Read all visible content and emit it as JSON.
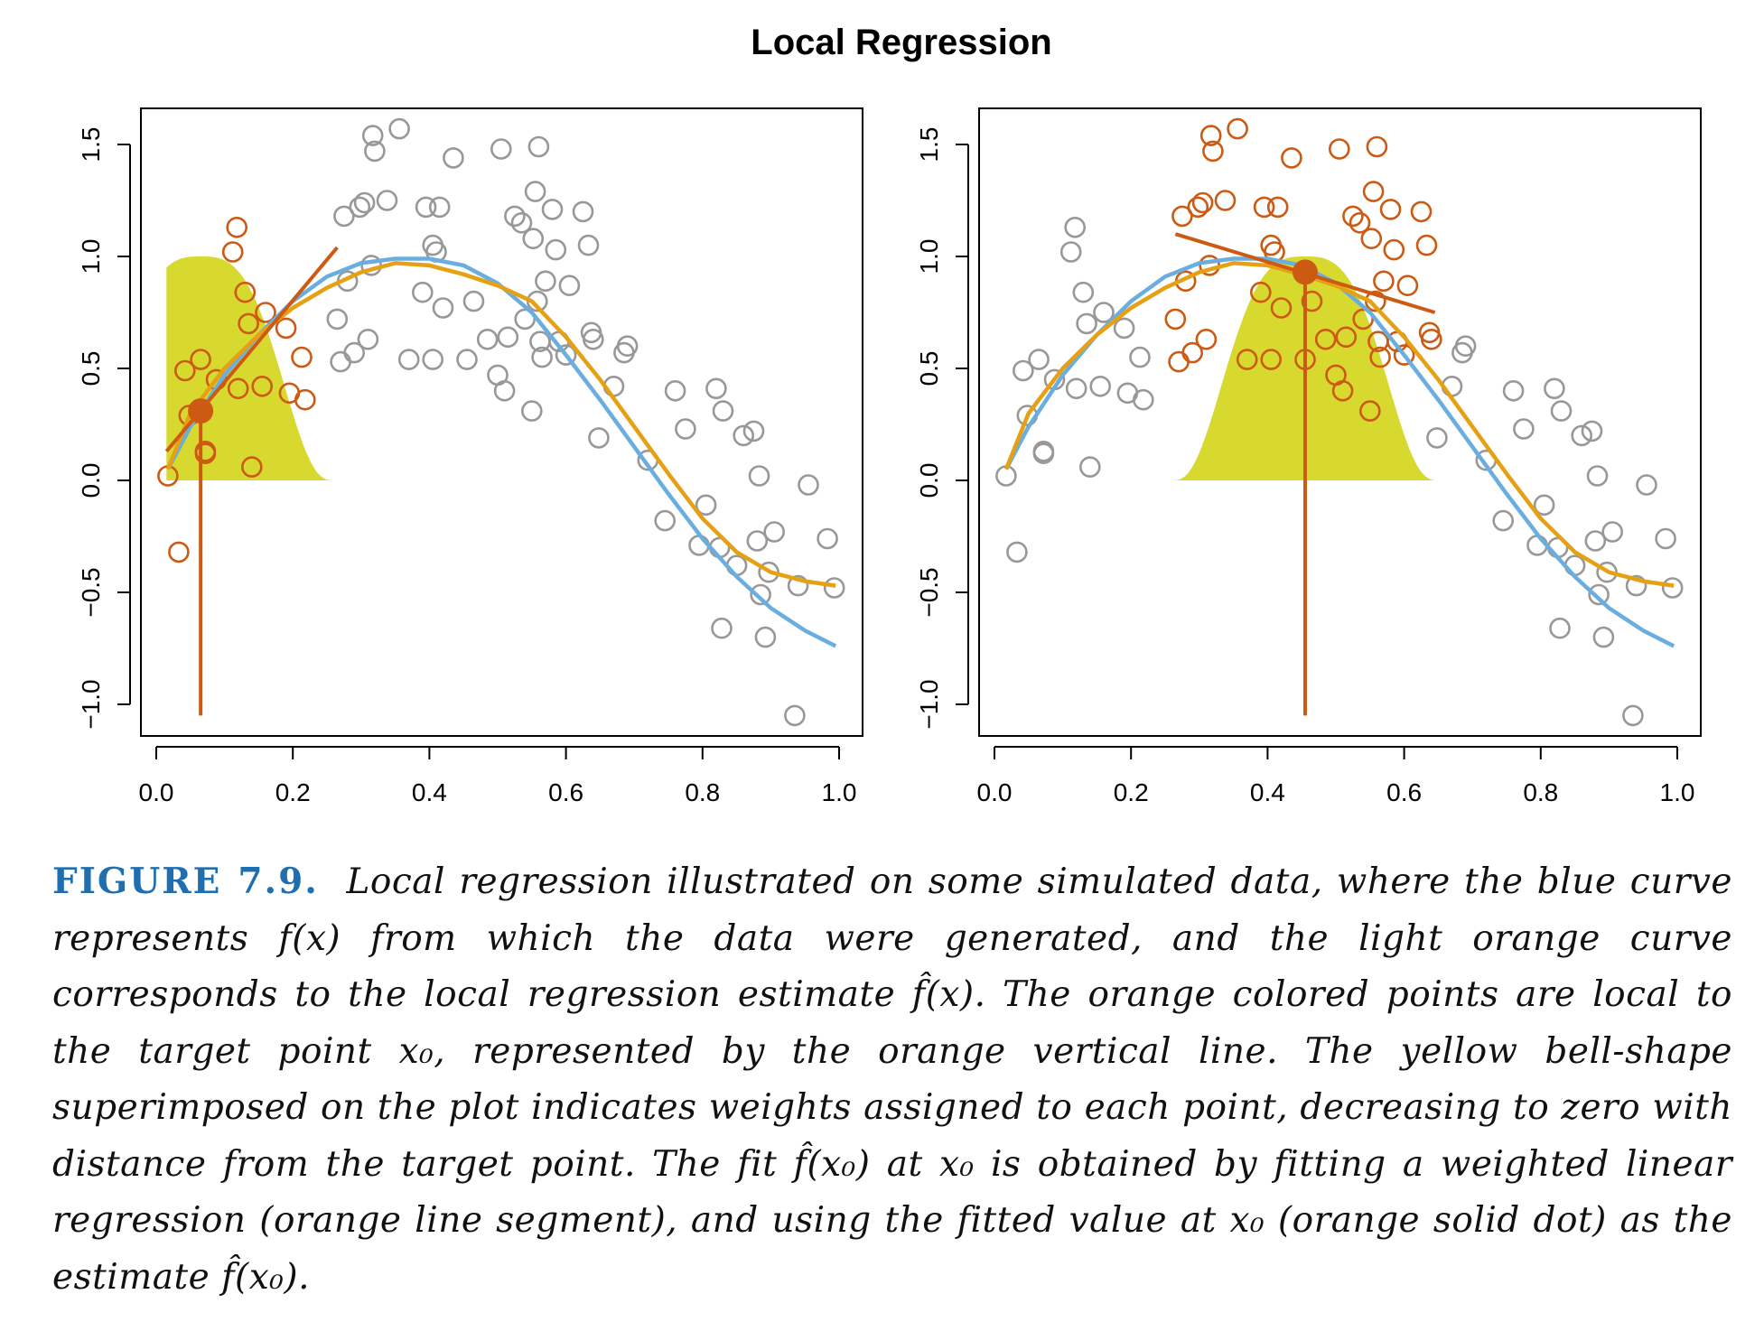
{
  "title": "Local Regression",
  "colors": {
    "true_curve": "#6aaee0",
    "fit_curve": "#e6a014",
    "local_points": "#cc5a12",
    "other_points": "#989898",
    "kernel": "#d8d92e"
  },
  "caption": {
    "label": "FIGURE 7.9.",
    "text": "Local regression illustrated on some simulated data, where the blue curve represents f(x) from which the data were generated, and the light orange curve corresponds to the local regression estimate f̂(x). The orange colored points are local to the target point x₀, represented by the orange vertical line. The yellow bell-shape superimposed on the plot indicates weights assigned to each point, decreasing to zero with distance from the target point. The fit f̂(x₀) at x₀ is obtained by fitting a weighted linear regression (orange line segment), and using the fitted value at x₀ (orange solid dot) as the estimate f̂(x₀)."
  },
  "chart_data": [
    {
      "type": "scatter",
      "xlim": [
        0,
        1
      ],
      "ylim": [
        -1.0,
        1.5
      ],
      "xticks": [
        "0.0",
        "0.2",
        "0.4",
        "0.6",
        "0.8",
        "1.0"
      ],
      "yticks": [
        "−1.0",
        "−0.5",
        "0.0",
        "0.5",
        "1.0",
        "1.5"
      ],
      "grid": false,
      "target_x0": 0.065,
      "fit_at_x0": 0.31,
      "local_span": [
        0.015,
        0.26
      ],
      "regression_segment": {
        "x": [
          0.015,
          0.265
        ],
        "y": [
          0.13,
          1.04
        ]
      },
      "points": [
        [
          0.017,
          0.02
        ],
        [
          0.033,
          -0.32
        ],
        [
          0.042,
          0.49
        ],
        [
          0.048,
          0.29
        ],
        [
          0.065,
          0.54
        ],
        [
          0.072,
          0.12
        ],
        [
          0.072,
          0.13
        ],
        [
          0.088,
          0.45
        ],
        [
          0.112,
          1.02
        ],
        [
          0.118,
          1.13
        ],
        [
          0.12,
          0.41
        ],
        [
          0.13,
          0.84
        ],
        [
          0.135,
          0.7
        ],
        [
          0.14,
          0.06
        ],
        [
          0.155,
          0.42
        ],
        [
          0.16,
          0.75
        ],
        [
          0.19,
          0.68
        ],
        [
          0.195,
          0.39
        ],
        [
          0.213,
          0.55
        ],
        [
          0.218,
          0.36
        ],
        [
          0.265,
          0.72
        ],
        [
          0.27,
          0.53
        ],
        [
          0.275,
          1.18
        ],
        [
          0.28,
          0.89
        ],
        [
          0.29,
          0.57
        ],
        [
          0.298,
          1.22
        ],
        [
          0.305,
          1.24
        ],
        [
          0.31,
          0.63
        ],
        [
          0.315,
          0.96
        ],
        [
          0.317,
          1.54
        ],
        [
          0.32,
          1.47
        ],
        [
          0.338,
          1.25
        ],
        [
          0.356,
          1.57
        ],
        [
          0.37,
          0.54
        ],
        [
          0.39,
          0.84
        ],
        [
          0.395,
          1.22
        ],
        [
          0.405,
          0.54
        ],
        [
          0.405,
          1.05
        ],
        [
          0.41,
          1.02
        ],
        [
          0.415,
          1.22
        ],
        [
          0.42,
          0.77
        ],
        [
          0.435,
          1.44
        ],
        [
          0.455,
          0.54
        ],
        [
          0.465,
          0.8
        ],
        [
          0.485,
          0.63
        ],
        [
          0.5,
          0.47
        ],
        [
          0.505,
          1.48
        ],
        [
          0.51,
          0.4
        ],
        [
          0.515,
          0.64
        ],
        [
          0.525,
          1.18
        ],
        [
          0.535,
          1.15
        ],
        [
          0.54,
          0.72
        ],
        [
          0.55,
          0.31
        ],
        [
          0.552,
          1.08
        ],
        [
          0.555,
          1.29
        ],
        [
          0.558,
          0.8
        ],
        [
          0.56,
          1.49
        ],
        [
          0.562,
          0.62
        ],
        [
          0.565,
          0.55
        ],
        [
          0.57,
          0.89
        ],
        [
          0.58,
          1.21
        ],
        [
          0.585,
          1.03
        ],
        [
          0.59,
          0.62
        ],
        [
          0.6,
          0.56
        ],
        [
          0.605,
          0.87
        ],
        [
          0.625,
          1.2
        ],
        [
          0.633,
          1.05
        ],
        [
          0.637,
          0.66
        ],
        [
          0.64,
          0.63
        ],
        [
          0.648,
          0.19
        ],
        [
          0.67,
          0.42
        ],
        [
          0.685,
          0.57
        ],
        [
          0.69,
          0.6
        ],
        [
          0.72,
          0.09
        ],
        [
          0.745,
          -0.18
        ],
        [
          0.76,
          0.4
        ],
        [
          0.775,
          0.23
        ],
        [
          0.795,
          -0.29
        ],
        [
          0.805,
          -0.11
        ],
        [
          0.82,
          0.41
        ],
        [
          0.825,
          -0.3
        ],
        [
          0.828,
          -0.66
        ],
        [
          0.83,
          0.31
        ],
        [
          0.85,
          -0.38
        ],
        [
          0.86,
          0.2
        ],
        [
          0.875,
          0.22
        ],
        [
          0.88,
          -0.27
        ],
        [
          0.883,
          0.02
        ],
        [
          0.885,
          -0.51
        ],
        [
          0.892,
          -0.7
        ],
        [
          0.897,
          -0.41
        ],
        [
          0.905,
          -0.23
        ],
        [
          0.935,
          -1.05
        ],
        [
          0.94,
          -0.47
        ],
        [
          0.955,
          -0.02
        ],
        [
          0.983,
          -0.26
        ],
        [
          0.993,
          -0.48
        ]
      ],
      "series": [
        {
          "x": [
            0.017,
            0.05,
            0.1,
            0.15,
            0.2,
            0.25,
            0.3,
            0.35,
            0.4,
            0.45,
            0.5,
            0.55,
            0.6,
            0.65,
            0.7,
            0.75,
            0.8,
            0.85,
            0.9,
            0.95,
            0.995
          ],
          "y": [
            0.05,
            0.24,
            0.47,
            0.65,
            0.8,
            0.91,
            0.97,
            0.99,
            0.99,
            0.96,
            0.88,
            0.75,
            0.56,
            0.36,
            0.15,
            -0.06,
            -0.26,
            -0.43,
            -0.57,
            -0.67,
            -0.74
          ]
        },
        {
          "x": [
            0.017,
            0.05,
            0.1,
            0.15,
            0.2,
            0.25,
            0.3,
            0.35,
            0.4,
            0.45,
            0.5,
            0.55,
            0.6,
            0.65,
            0.7,
            0.75,
            0.8,
            0.85,
            0.9,
            0.95,
            0.995
          ],
          "y": [
            0.05,
            0.3,
            0.5,
            0.65,
            0.77,
            0.86,
            0.93,
            0.97,
            0.96,
            0.92,
            0.87,
            0.8,
            0.64,
            0.45,
            0.24,
            0.03,
            -0.17,
            -0.32,
            -0.41,
            -0.45,
            -0.47
          ]
        }
      ]
    },
    {
      "type": "scatter",
      "xlim": [
        0,
        1
      ],
      "ylim": [
        -1.0,
        1.5
      ],
      "xticks": [
        "0.0",
        "0.2",
        "0.4",
        "0.6",
        "0.8",
        "1.0"
      ],
      "yticks": [
        "−1.0",
        "−0.5",
        "0.0",
        "0.5",
        "1.0",
        "1.5"
      ],
      "grid": false,
      "target_x0": 0.455,
      "fit_at_x0": 0.93,
      "local_span": [
        0.26,
        0.645
      ],
      "regression_segment": {
        "x": [
          0.265,
          0.645
        ],
        "y": [
          1.1,
          0.75
        ]
      },
      "points": [
        [
          0.017,
          0.02
        ],
        [
          0.033,
          -0.32
        ],
        [
          0.042,
          0.49
        ],
        [
          0.048,
          0.29
        ],
        [
          0.065,
          0.54
        ],
        [
          0.072,
          0.12
        ],
        [
          0.072,
          0.13
        ],
        [
          0.088,
          0.45
        ],
        [
          0.112,
          1.02
        ],
        [
          0.118,
          1.13
        ],
        [
          0.12,
          0.41
        ],
        [
          0.13,
          0.84
        ],
        [
          0.135,
          0.7
        ],
        [
          0.14,
          0.06
        ],
        [
          0.155,
          0.42
        ],
        [
          0.16,
          0.75
        ],
        [
          0.19,
          0.68
        ],
        [
          0.195,
          0.39
        ],
        [
          0.213,
          0.55
        ],
        [
          0.218,
          0.36
        ],
        [
          0.265,
          0.72
        ],
        [
          0.27,
          0.53
        ],
        [
          0.275,
          1.18
        ],
        [
          0.28,
          0.89
        ],
        [
          0.29,
          0.57
        ],
        [
          0.298,
          1.22
        ],
        [
          0.305,
          1.24
        ],
        [
          0.31,
          0.63
        ],
        [
          0.315,
          0.96
        ],
        [
          0.317,
          1.54
        ],
        [
          0.32,
          1.47
        ],
        [
          0.338,
          1.25
        ],
        [
          0.356,
          1.57
        ],
        [
          0.37,
          0.54
        ],
        [
          0.39,
          0.84
        ],
        [
          0.395,
          1.22
        ],
        [
          0.405,
          0.54
        ],
        [
          0.405,
          1.05
        ],
        [
          0.41,
          1.02
        ],
        [
          0.415,
          1.22
        ],
        [
          0.42,
          0.77
        ],
        [
          0.435,
          1.44
        ],
        [
          0.455,
          0.54
        ],
        [
          0.465,
          0.8
        ],
        [
          0.485,
          0.63
        ],
        [
          0.5,
          0.47
        ],
        [
          0.505,
          1.48
        ],
        [
          0.51,
          0.4
        ],
        [
          0.515,
          0.64
        ],
        [
          0.525,
          1.18
        ],
        [
          0.535,
          1.15
        ],
        [
          0.54,
          0.72
        ],
        [
          0.55,
          0.31
        ],
        [
          0.552,
          1.08
        ],
        [
          0.555,
          1.29
        ],
        [
          0.558,
          0.8
        ],
        [
          0.56,
          1.49
        ],
        [
          0.562,
          0.62
        ],
        [
          0.565,
          0.55
        ],
        [
          0.57,
          0.89
        ],
        [
          0.58,
          1.21
        ],
        [
          0.585,
          1.03
        ],
        [
          0.59,
          0.62
        ],
        [
          0.6,
          0.56
        ],
        [
          0.605,
          0.87
        ],
        [
          0.625,
          1.2
        ],
        [
          0.633,
          1.05
        ],
        [
          0.637,
          0.66
        ],
        [
          0.64,
          0.63
        ],
        [
          0.648,
          0.19
        ],
        [
          0.67,
          0.42
        ],
        [
          0.685,
          0.57
        ],
        [
          0.69,
          0.6
        ],
        [
          0.72,
          0.09
        ],
        [
          0.745,
          -0.18
        ],
        [
          0.76,
          0.4
        ],
        [
          0.775,
          0.23
        ],
        [
          0.795,
          -0.29
        ],
        [
          0.805,
          -0.11
        ],
        [
          0.82,
          0.41
        ],
        [
          0.825,
          -0.3
        ],
        [
          0.828,
          -0.66
        ],
        [
          0.83,
          0.31
        ],
        [
          0.85,
          -0.38
        ],
        [
          0.86,
          0.2
        ],
        [
          0.875,
          0.22
        ],
        [
          0.88,
          -0.27
        ],
        [
          0.883,
          0.02
        ],
        [
          0.885,
          -0.51
        ],
        [
          0.892,
          -0.7
        ],
        [
          0.897,
          -0.41
        ],
        [
          0.905,
          -0.23
        ],
        [
          0.935,
          -1.05
        ],
        [
          0.94,
          -0.47
        ],
        [
          0.955,
          -0.02
        ],
        [
          0.983,
          -0.26
        ],
        [
          0.993,
          -0.48
        ]
      ],
      "series": [
        {
          "x": [
            0.017,
            0.05,
            0.1,
            0.15,
            0.2,
            0.25,
            0.3,
            0.35,
            0.4,
            0.45,
            0.5,
            0.55,
            0.6,
            0.65,
            0.7,
            0.75,
            0.8,
            0.85,
            0.9,
            0.95,
            0.995
          ],
          "y": [
            0.05,
            0.24,
            0.47,
            0.65,
            0.8,
            0.91,
            0.97,
            0.99,
            0.99,
            0.96,
            0.88,
            0.75,
            0.56,
            0.36,
            0.15,
            -0.06,
            -0.26,
            -0.43,
            -0.57,
            -0.67,
            -0.74
          ]
        },
        {
          "x": [
            0.017,
            0.05,
            0.1,
            0.15,
            0.2,
            0.25,
            0.3,
            0.35,
            0.4,
            0.45,
            0.5,
            0.55,
            0.6,
            0.65,
            0.7,
            0.75,
            0.8,
            0.85,
            0.9,
            0.95,
            0.995
          ],
          "y": [
            0.05,
            0.3,
            0.5,
            0.65,
            0.77,
            0.86,
            0.93,
            0.97,
            0.96,
            0.92,
            0.87,
            0.8,
            0.64,
            0.45,
            0.24,
            0.03,
            -0.17,
            -0.32,
            -0.41,
            -0.45,
            -0.47
          ]
        }
      ]
    }
  ]
}
